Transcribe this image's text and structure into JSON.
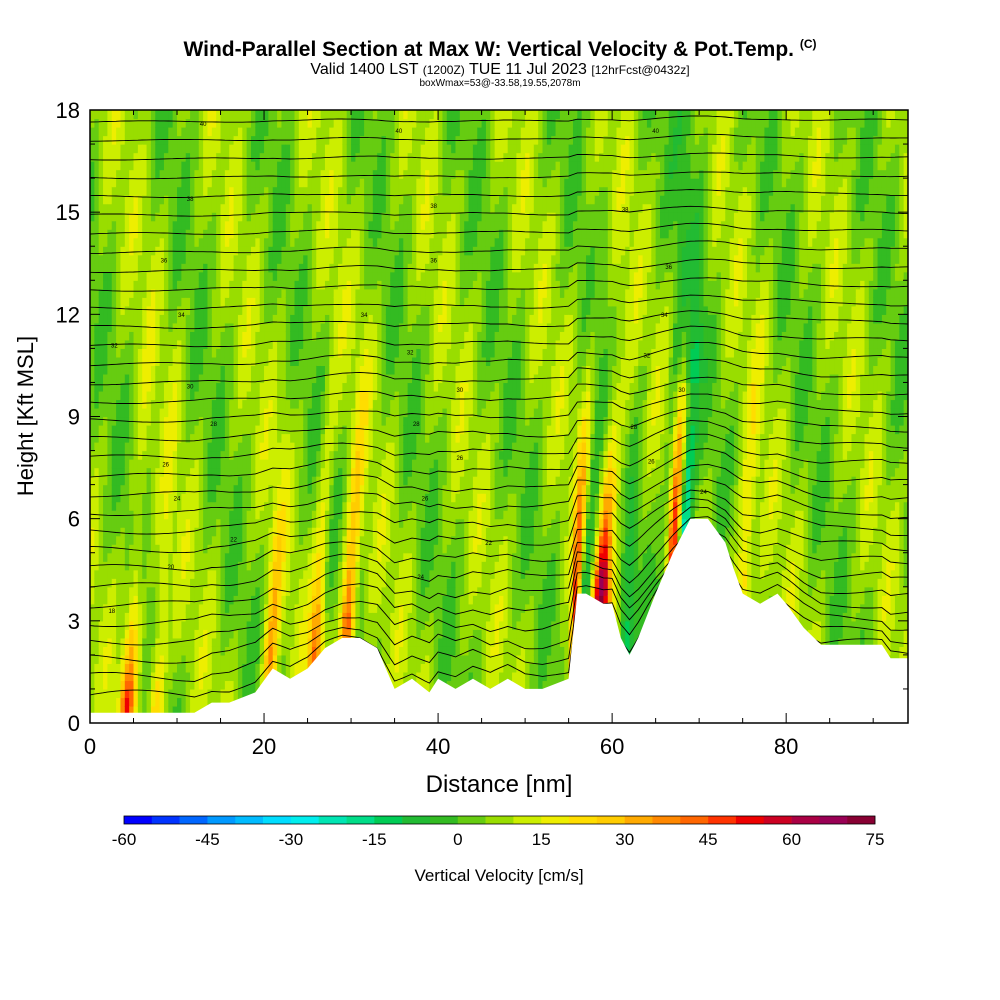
{
  "header": {
    "title": "Wind-Parallel Section at Max W: Vertical Velocity & Pot.Temp.",
    "copyright": "(C)",
    "valid_prefix": "Valid 1400 LST",
    "valid_zulu": "(1200Z)",
    "valid_date": "TUE 11 Jul 2023",
    "forecast": "[12hrFcst@0432z]",
    "box_info": "boxWmax=53@-33.58,19.55,2078m"
  },
  "chart_data": {
    "type": "heatmap",
    "xlabel": "Distance [nm]",
    "ylabel": "Height [Kft MSL]",
    "xlim": [
      0,
      94
    ],
    "ylim": [
      0,
      18
    ],
    "x_ticks": [
      0,
      20,
      40,
      60,
      80
    ],
    "x_tick_labels": [
      "0",
      "20",
      "40",
      "60",
      "80"
    ],
    "y_ticks": [
      0,
      3,
      6,
      9,
      12,
      15,
      18
    ],
    "y_tick_labels": [
      "0",
      "3",
      "6",
      "9",
      "12",
      "15",
      "18"
    ],
    "colorbar": {
      "label": "Vertical Velocity [cm/s]",
      "min": -60,
      "max": 75,
      "step": 5,
      "tick_labels": [
        "-60",
        "-45",
        "-30",
        "-15",
        "0",
        "15",
        "30",
        "45",
        "60",
        "75"
      ],
      "colors": [
        "#0000ff",
        "#0033ff",
        "#0066ff",
        "#0099ff",
        "#00bbff",
        "#00ddff",
        "#00eeee",
        "#00e5b3",
        "#00dd88",
        "#00cc55",
        "#22bb33",
        "#33bb22",
        "#66cc11",
        "#99dd00",
        "#ccee00",
        "#eeee00",
        "#ffdd00",
        "#ffcc00",
        "#ffaa00",
        "#ff8800",
        "#ff6600",
        "#ff3300",
        "#ee0000",
        "#cc0022",
        "#aa0044",
        "#990055",
        "#880033"
      ]
    },
    "terrain_top": [
      [
        0,
        0.3
      ],
      [
        4,
        0.3
      ],
      [
        8,
        0.3
      ],
      [
        12,
        0.3
      ],
      [
        14,
        0.6
      ],
      [
        16,
        0.6
      ],
      [
        19,
        0.9
      ],
      [
        21,
        1.6
      ],
      [
        23,
        1.3
      ],
      [
        25,
        1.6
      ],
      [
        27,
        2.2
      ],
      [
        29,
        2.5
      ],
      [
        31,
        2.5
      ],
      [
        33,
        2.2
      ],
      [
        34,
        1.6
      ],
      [
        35,
        1.0
      ],
      [
        37,
        1.3
      ],
      [
        39,
        0.9
      ],
      [
        40,
        1.3
      ],
      [
        42,
        1.0
      ],
      [
        44,
        1.3
      ],
      [
        46,
        1.0
      ],
      [
        48,
        1.3
      ],
      [
        50,
        1.0
      ],
      [
        52,
        1.0
      ],
      [
        55,
        1.3
      ],
      [
        56,
        3.8
      ],
      [
        57,
        3.8
      ],
      [
        59,
        3.5
      ],
      [
        60,
        3.5
      ],
      [
        61,
        2.5
      ],
      [
        62,
        2.0
      ],
      [
        63,
        2.5
      ],
      [
        65,
        3.8
      ],
      [
        67,
        5.0
      ],
      [
        69,
        6.0
      ],
      [
        71,
        6.0
      ],
      [
        73,
        5.3
      ],
      [
        74,
        4.5
      ],
      [
        75,
        3.8
      ],
      [
        77,
        3.5
      ],
      [
        79,
        3.8
      ],
      [
        80,
        3.5
      ],
      [
        82,
        2.8
      ],
      [
        84,
        2.3
      ],
      [
        88,
        2.3
      ],
      [
        91,
        2.3
      ],
      [
        92,
        1.9
      ],
      [
        94,
        1.9
      ]
    ],
    "updraft_columns": [
      {
        "x": 4.2,
        "amplitude": 40
      },
      {
        "x": 7.5,
        "amplitude": 25
      },
      {
        "x": 20.6,
        "amplitude": 30
      },
      {
        "x": 25.8,
        "amplitude": 35
      },
      {
        "x": 29.5,
        "amplitude": 45
      },
      {
        "x": 55.8,
        "amplitude": 50
      },
      {
        "x": 58.7,
        "amplitude": 55
      },
      {
        "x": 67.0,
        "amplitude": 45
      },
      {
        "x": 75.0,
        "amplitude": 25
      },
      {
        "x": 60.0,
        "amplitude": 15
      }
    ],
    "downdraft_columns": [
      {
        "x": 56.7,
        "amplitude": -30
      },
      {
        "x": 68.2,
        "amplitude": -35
      },
      {
        "x": 61.5,
        "amplitude": -20
      },
      {
        "x": 66.0,
        "amplitude": -15
      }
    ],
    "isentropes": {
      "count": 34,
      "base_level_kft": 0.6,
      "spacing_kft": 0.55,
      "contour_labels": [
        {
          "x": 2.5,
          "y": 3.3,
          "text": "18"
        },
        {
          "x": 9.3,
          "y": 4.6,
          "text": "20"
        },
        {
          "x": 16.5,
          "y": 5.4,
          "text": "22"
        },
        {
          "x": 10,
          "y": 6.6,
          "text": "24"
        },
        {
          "x": 8.7,
          "y": 7.6,
          "text": "26"
        },
        {
          "x": 14.2,
          "y": 8.8,
          "text": "28"
        },
        {
          "x": 11.5,
          "y": 9.9,
          "text": "30"
        },
        {
          "x": 2.8,
          "y": 11.1,
          "text": "32"
        },
        {
          "x": 10.5,
          "y": 12.0,
          "text": "34"
        },
        {
          "x": 8.5,
          "y": 13.6,
          "text": "36"
        },
        {
          "x": 11.5,
          "y": 15.4,
          "text": "38"
        },
        {
          "x": 13,
          "y": 17.6,
          "text": "40"
        },
        {
          "x": 38,
          "y": 4.3,
          "text": "24"
        },
        {
          "x": 38.5,
          "y": 6.6,
          "text": "26"
        },
        {
          "x": 45.8,
          "y": 5.3,
          "text": "22"
        },
        {
          "x": 37.5,
          "y": 8.8,
          "text": "28"
        },
        {
          "x": 42.5,
          "y": 7.8,
          "text": "26"
        },
        {
          "x": 42.5,
          "y": 9.8,
          "text": "30"
        },
        {
          "x": 36.8,
          "y": 10.9,
          "text": "32"
        },
        {
          "x": 31.5,
          "y": 12.0,
          "text": "34"
        },
        {
          "x": 39.5,
          "y": 13.6,
          "text": "36"
        },
        {
          "x": 39.5,
          "y": 15.2,
          "text": "38"
        },
        {
          "x": 35.5,
          "y": 17.4,
          "text": "40"
        },
        {
          "x": 64.5,
          "y": 7.7,
          "text": "26"
        },
        {
          "x": 62.5,
          "y": 8.7,
          "text": "28"
        },
        {
          "x": 68,
          "y": 9.8,
          "text": "30"
        },
        {
          "x": 64,
          "y": 10.8,
          "text": "32"
        },
        {
          "x": 66,
          "y": 12.0,
          "text": "34"
        },
        {
          "x": 66.5,
          "y": 13.4,
          "text": "36"
        },
        {
          "x": 61.5,
          "y": 15.1,
          "text": "38"
        },
        {
          "x": 65,
          "y": 17.4,
          "text": "40"
        },
        {
          "x": 70.5,
          "y": 6.8,
          "text": "24"
        }
      ]
    }
  }
}
